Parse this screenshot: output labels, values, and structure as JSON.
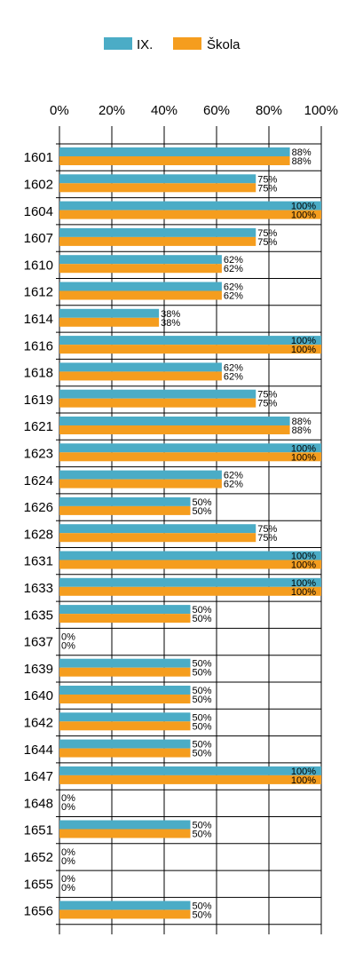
{
  "chart_data": {
    "type": "bar",
    "orientation": "horizontal",
    "categories": [
      "1601",
      "1602",
      "1604",
      "1607",
      "1610",
      "1612",
      "1614",
      "1616",
      "1618",
      "1619",
      "1621",
      "1623",
      "1624",
      "1626",
      "1628",
      "1631",
      "1633",
      "1635",
      "1637",
      "1639",
      "1640",
      "1642",
      "1644",
      "1647",
      "1648",
      "1651",
      "1652",
      "1655",
      "1656"
    ],
    "series": [
      {
        "name": "IX.",
        "color": "#4bacc6",
        "values": [
          88,
          75,
          100,
          75,
          62,
          62,
          38,
          100,
          62,
          75,
          88,
          100,
          62,
          50,
          75,
          100,
          100,
          50,
          0,
          50,
          50,
          50,
          50,
          100,
          0,
          50,
          0,
          0,
          50
        ]
      },
      {
        "name": "Škola",
        "color": "#f59d1e",
        "values": [
          88,
          75,
          100,
          75,
          62,
          62,
          38,
          100,
          62,
          75,
          88,
          100,
          62,
          50,
          75,
          100,
          100,
          50,
          0,
          50,
          50,
          50,
          50,
          100,
          0,
          50,
          0,
          0,
          50
        ]
      }
    ],
    "xlim": [
      0,
      100
    ],
    "x_ticks": [
      "0%",
      "20%",
      "40%",
      "60%",
      "80%",
      "100%"
    ],
    "value_suffix": "%",
    "grid": true,
    "legend_position": "top-center",
    "title": "",
    "xlabel": "",
    "ylabel": ""
  }
}
